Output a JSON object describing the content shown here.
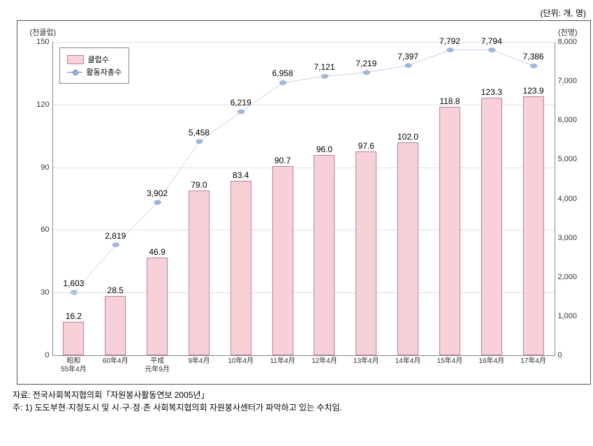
{
  "unit_label": "(단위: 개, 명)",
  "chart": {
    "type": "bar+line",
    "left_axis_title": "(천클럽)",
    "right_axis_title": "(천명)",
    "left_ylim": [
      0,
      150
    ],
    "left_ytick_step": 30,
    "right_ylim": [
      0,
      8000
    ],
    "right_ytick_step": 1000,
    "categories": [
      {
        "era": "昭和",
        "label": "55年4月"
      },
      {
        "era": "",
        "label": "60年4月"
      },
      {
        "era": "平成",
        "label": "元年9月"
      },
      {
        "era": "",
        "label": "9年4月"
      },
      {
        "era": "",
        "label": "10年4月"
      },
      {
        "era": "",
        "label": "11年4月"
      },
      {
        "era": "",
        "label": "12年4月"
      },
      {
        "era": "",
        "label": "13年4月"
      },
      {
        "era": "",
        "label": "14年4月"
      },
      {
        "era": "",
        "label": "15年4月"
      },
      {
        "era": "",
        "label": "16年4月"
      },
      {
        "era": "",
        "label": "17年4月"
      }
    ],
    "bar_series": {
      "name": "클럽수",
      "color": "#f8d0d8",
      "border_color": "#c080a0",
      "bar_width_pct": 4.2,
      "values": [
        16.2,
        28.5,
        46.9,
        79.0,
        83.4,
        90.7,
        96.0,
        97.6,
        102.0,
        118.8,
        123.3,
        123.9
      ],
      "labels": [
        "16.2",
        "28.5",
        "46.9",
        "79.0",
        "83.4",
        "90.7",
        "96.0",
        "97.6",
        "102.0",
        "118.8",
        "123.3",
        "123.9"
      ]
    },
    "line_series": {
      "name": "활동자총수",
      "line_color": "#6080c0",
      "marker_color": "#a0b8e0",
      "marker_border": "#6080c0",
      "marker_radius": 3.5,
      "line_width": 1.2,
      "values": [
        1603,
        2819,
        3902,
        5458,
        6219,
        6958,
        7121,
        7219,
        7397,
        7792,
        7794,
        7386
      ],
      "labels": [
        "1,603",
        "2,819",
        "3,902",
        "5,458",
        "6,219",
        "6,958",
        "7,121",
        "7,219",
        "7,397",
        "7,792",
        "7,794",
        "7,386"
      ]
    },
    "background_color": "#ffffff",
    "grid_color": "#e0e0e0",
    "left_ticks": [
      "0",
      "30",
      "60",
      "90",
      "120",
      "150"
    ],
    "right_ticks": [
      "0",
      "1,000",
      "2,000",
      "3,000",
      "4,000",
      "5,000",
      "6,000",
      "7,000",
      "8,000"
    ]
  },
  "legend": {
    "bar_label": "클럽수",
    "line_label": "활동자총수"
  },
  "footer": {
    "source": "자료: 전국사회복지협의회「자원봉사활동연보 2005년」",
    "note": "주: 1) 도도부현·지정도시 및 시·구·정·촌 사회복지협의회 자원봉사센터가 파악하고 있는 수치임."
  }
}
